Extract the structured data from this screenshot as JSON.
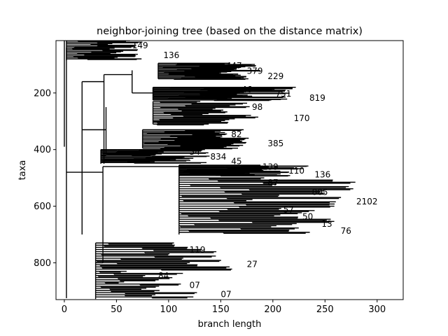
{
  "chart_data": {
    "type": "tree",
    "title": "neighbor-joining tree (based on the distance matrix)",
    "xlabel": "branch length",
    "ylabel": "taxa",
    "xlim": [
      -8,
      325
    ],
    "ylim": [
      930,
      15
    ],
    "y_inverted": true,
    "grid": false,
    "xticks": [
      0,
      50,
      100,
      150,
      200,
      250,
      300
    ],
    "yticks": [
      200,
      400,
      600,
      800
    ],
    "clades": [
      {
        "y": [
          15,
          85
        ],
        "x_base": 2,
        "x_leaf": [
          40,
          75
        ],
        "label_x": [
          65,
          95
        ],
        "labels": [
          "149",
          "136"
        ]
      },
      {
        "y": [
          95,
          150
        ],
        "x_base": 90,
        "x_leaf": [
          150,
          190
        ],
        "label_x": [
          155,
          195
        ],
        "labels": [
          "447",
          "379",
          "229"
        ]
      },
      {
        "y": [
          180,
          225
        ],
        "x_base": 85,
        "x_leaf": [
          160,
          225
        ],
        "label_x": [
          170,
          235
        ],
        "labels": [
          "46",
          "751",
          "819"
        ]
      },
      {
        "y": [
          230,
          310
        ],
        "x_base": 85,
        "x_leaf": [
          130,
          200
        ],
        "label_x": [
          180,
          220
        ],
        "labels": [
          "98",
          "170"
        ]
      },
      {
        "y": [
          330,
          395
        ],
        "x_base": 75,
        "x_leaf": [
          140,
          185
        ],
        "label_x": [
          160,
          195
        ],
        "labels": [
          "82",
          "385"
        ]
      },
      {
        "y": [
          400,
          450
        ],
        "x_base": 35,
        "x_leaf": [
          65,
          140
        ],
        "label_x": [
          120,
          160
        ],
        "labels": [
          "34",
          "834",
          "45"
        ]
      },
      {
        "y": [
          455,
          495
        ],
        "x_base": 110,
        "x_leaf": [
          175,
          240
        ],
        "label_x": [
          190,
          240
        ],
        "labels": [
          "139",
          "110",
          "136"
        ]
      },
      {
        "y": [
          500,
          600
        ],
        "x_base": 110,
        "x_leaf": [
          180,
          280
        ],
        "label_x": [
          195,
          280
        ],
        "labels": [
          "87",
          "805",
          "2102"
        ]
      },
      {
        "y": [
          600,
          700
        ],
        "x_base": 110,
        "x_leaf": [
          200,
          260
        ],
        "label_x": [
          210,
          265
        ],
        "labels": [
          "57",
          "50",
          "13",
          "76"
        ]
      },
      {
        "y": [
          730,
          830
        ],
        "x_base": 30,
        "x_leaf": [
          100,
          165
        ],
        "label_x": [
          120,
          175
        ],
        "labels": [
          "119",
          "27"
        ]
      },
      {
        "y": [
          830,
          928
        ],
        "x_base": 30,
        "x_leaf": [
          55,
          130
        ],
        "label_x": [
          90,
          150
        ],
        "labels": [
          "84",
          "07",
          "07"
        ]
      }
    ]
  }
}
